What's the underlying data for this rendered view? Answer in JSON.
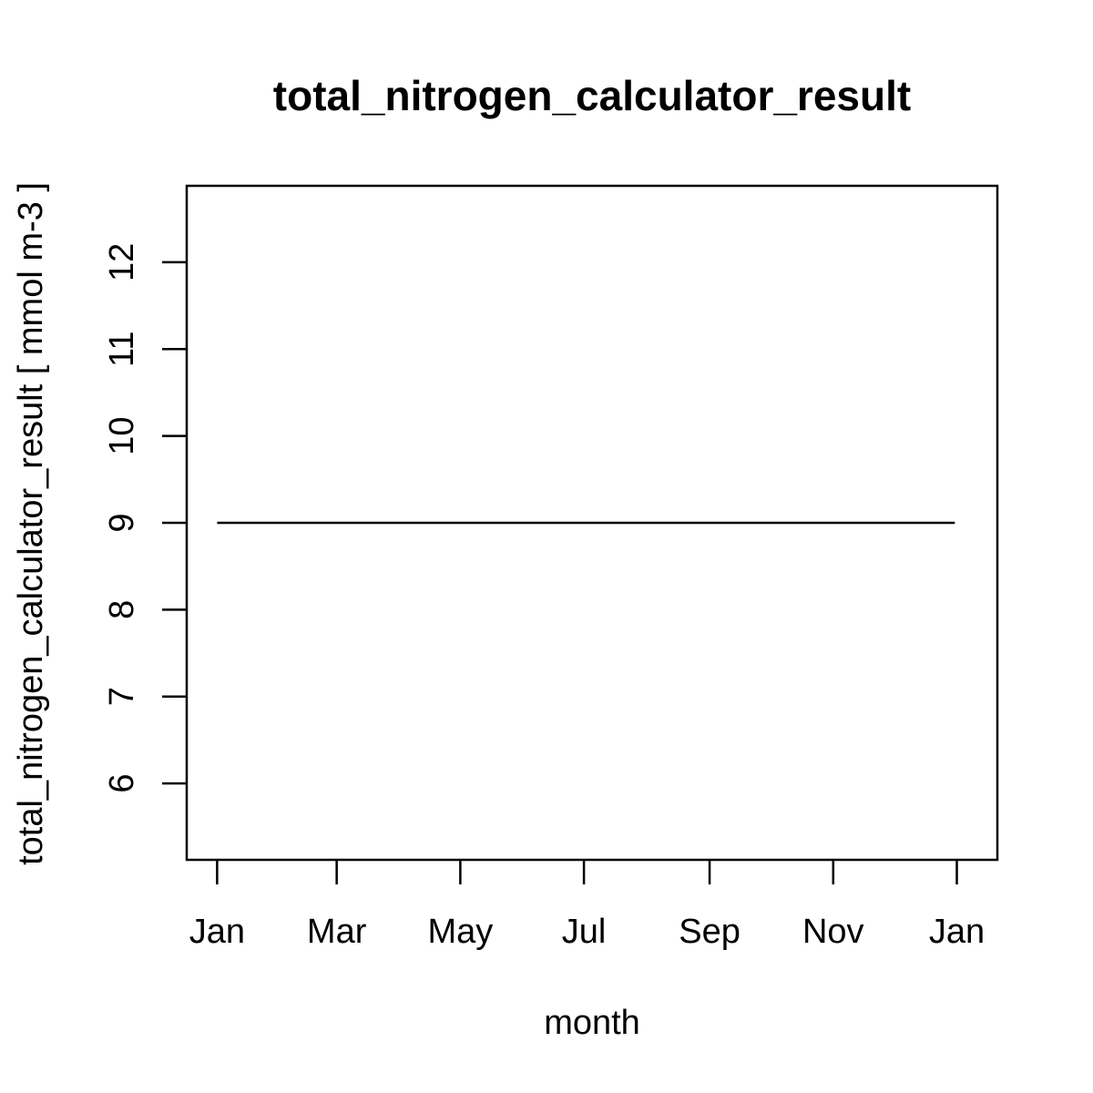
{
  "chart_data": {
    "type": "line",
    "title": "total_nitrogen_calculator_result",
    "xlabel": "month",
    "ylabel": "total_nitrogen_calculator_result [ mmol m-3 ]",
    "x": [
      "2001-01-01",
      "2001-12-31"
    ],
    "series": [
      {
        "values": [
          9,
          9
        ]
      }
    ],
    "xlim": [
      "2000-12-17",
      "2002-01-21"
    ],
    "ylim": [
      5.12,
      12.88
    ],
    "x_ticks": [
      {
        "date": "2001-01-01",
        "label": "Jan"
      },
      {
        "date": "2001-03-01",
        "label": "Mar"
      },
      {
        "date": "2001-05-01",
        "label": "May"
      },
      {
        "date": "2001-07-01",
        "label": "Jul"
      },
      {
        "date": "2001-09-01",
        "label": "Sep"
      },
      {
        "date": "2001-11-01",
        "label": "Nov"
      },
      {
        "date": "2002-01-01",
        "label": "Jan"
      }
    ],
    "y_ticks": [
      6,
      7,
      8,
      9,
      10,
      11,
      12
    ],
    "grid": false,
    "line_color": "#000000"
  }
}
